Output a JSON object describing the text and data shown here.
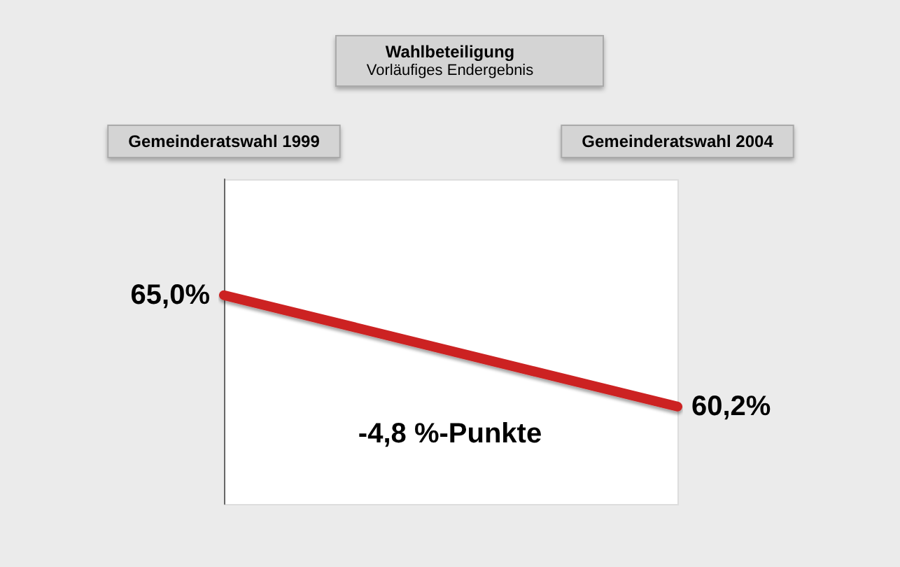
{
  "chart_data": {
    "type": "line",
    "title": "Wahlbeteiligung",
    "subtitle": "Vorläufiges Endergebnis",
    "categories": [
      "Gemeinderatswahl 1999",
      "Gemeinderatswahl 2004"
    ],
    "series": [
      {
        "color": "#cc2020",
        "values": [
          65.0,
          60.2
        ],
        "value_labels": [
          "65,0%",
          "60,2%"
        ]
      }
    ],
    "ylim": [
      56,
      70
    ],
    "annotations": [
      "-4,8 %-Punkte"
    ],
    "marker": "none"
  }
}
